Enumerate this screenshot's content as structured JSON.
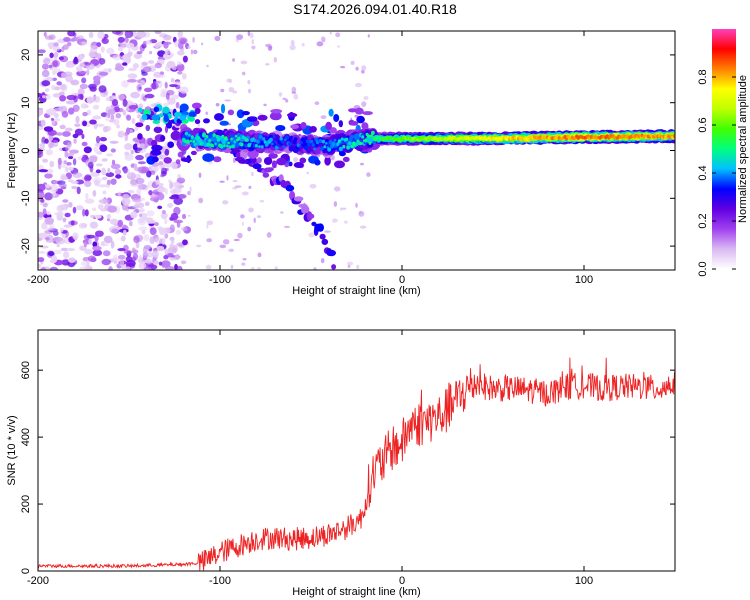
{
  "figure_title": "S174.2026.094.01.40.R18",
  "chart_data": [
    {
      "type": "heatmap",
      "title": "",
      "xlabel": "Height of straight line (km)",
      "ylabel": "Frequency (Hz)",
      "xlim": [
        -200,
        150
      ],
      "ylim": [
        -25,
        25
      ],
      "xticks": [
        -200,
        -100,
        0,
        100
      ],
      "yticks": [
        -20,
        -10,
        0,
        10,
        20
      ],
      "colorbar": {
        "label": "Normalized spectral amplitude",
        "range": [
          0.0,
          1.0
        ],
        "ticks": [
          "0.0",
          "0.2",
          "0.4",
          "0.6",
          "0.8"
        ],
        "colors": [
          "#ffffff",
          "#dab9f2",
          "#a040f0",
          "#6000e0",
          "#0000ff",
          "#00c0ff",
          "#00ff80",
          "#40ff00",
          "#c0ff00",
          "#ffff00",
          "#ff8000",
          "#ff0000",
          "#ff40c0"
        ]
      },
      "features": {
        "noise_region_x": [
          -200,
          -118
        ],
        "main_line": [
          {
            "x": -120,
            "y": 2.5,
            "amp": 0.45
          },
          {
            "x": -100,
            "y": 2.0,
            "amp": 0.5
          },
          {
            "x": -60,
            "y": 1.5,
            "amp": 0.35
          },
          {
            "x": -40,
            "y": 1.0,
            "amp": 0.4
          },
          {
            "x": -20,
            "y": 2.5,
            "amp": 0.5
          },
          {
            "x": 0,
            "y": 2.5,
            "amp": 0.6
          },
          {
            "x": 50,
            "y": 2.5,
            "amp": 0.75
          },
          {
            "x": 100,
            "y": 2.8,
            "amp": 0.85
          },
          {
            "x": 150,
            "y": 3.0,
            "amp": 0.8
          }
        ],
        "diagonal_branch": [
          {
            "x": -100,
            "y": 3.0
          },
          {
            "x": -65,
            "y": -7.0
          },
          {
            "x": -45,
            "y": -17.0
          },
          {
            "x": -37,
            "y": -24.0
          }
        ]
      }
    },
    {
      "type": "line",
      "title": "",
      "xlabel": "Height of straight line (km)",
      "ylabel": "SNR (10 * v/v)",
      "xlim": [
        -200,
        150
      ],
      "ylim": [
        0,
        720
      ],
      "xticks": [
        -200,
        -100,
        0,
        100
      ],
      "yticks": [
        0,
        200,
        400,
        600
      ],
      "color": "#ee2222",
      "series": [
        {
          "name": "SNR",
          "x": [
            -200,
            -150,
            -120,
            -110,
            -100,
            -90,
            -80,
            -70,
            -60,
            -50,
            -40,
            -30,
            -22,
            -18,
            -15,
            -10,
            -5,
            0,
            5,
            10,
            15,
            20,
            25,
            30,
            35,
            40,
            50,
            60,
            70,
            80,
            90,
            100,
            110,
            120,
            130,
            140,
            150
          ],
          "y": [
            15,
            15,
            20,
            25,
            55,
            75,
            95,
            100,
            95,
            100,
            110,
            130,
            160,
            260,
            300,
            330,
            370,
            380,
            440,
            440,
            450,
            460,
            480,
            510,
            540,
            560,
            545,
            545,
            540,
            530,
            550,
            555,
            545,
            550,
            550,
            545,
            560
          ]
        }
      ]
    }
  ]
}
